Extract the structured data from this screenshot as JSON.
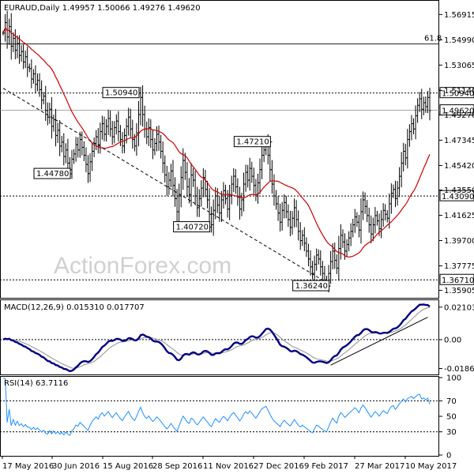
{
  "chart_data": {
    "type": "candlestick",
    "watermark": "ActionForex.com",
    "date_labels": [
      "17 May 2016",
      "30 Jun 2016",
      "15 Aug 2016",
      "28 Sep 2016",
      "11 Nov 2016",
      "27 Dec 2016",
      "9 Feb 2017",
      "27 Mar 2017",
      "10 May 2017"
    ],
    "price_panel": {
      "header": "EURAUD,Daily  1.49957 1.50066 1.49276 1.49620",
      "ylim": [
        1.354,
        1.579
      ],
      "y_ticks": [
        "1.56915",
        "1.54990",
        "1.53065",
        "1.51140",
        "1.49270",
        "1.47345",
        "1.45420",
        "1.43550",
        "1.41625",
        "1.39700",
        "1.37775",
        "1.35905"
      ],
      "fib_label": "61.8",
      "fib_level": 1.5467,
      "hlines": [
        {
          "value": 1.5094,
          "label": "1.50940",
          "style": "dotted"
        },
        {
          "value": 1.4309,
          "label": "1.43090",
          "style": "dotted"
        },
        {
          "value": 1.3671,
          "label": "1.36710",
          "style": "dotted"
        }
      ],
      "current_price": {
        "value": 1.4962,
        "label": "1.49620"
      },
      "annotations": [
        {
          "label": "1.50940",
          "date_index": 68,
          "value": 1.5094
        },
        {
          "label": "1.44780",
          "date_index": 34,
          "value": 1.4478
        },
        {
          "label": "1.40720",
          "date_index": 103,
          "value": 1.4072
        },
        {
          "label": "1.47210",
          "date_index": 133,
          "value": 1.4721
        },
        {
          "label": "1.36240",
          "date_index": 162,
          "value": 1.3624
        }
      ],
      "trendline": {
        "from": [
          0,
          1.513
        ],
        "to": [
          160,
          1.365
        ]
      },
      "moving_average_color": "#cc0000",
      "closes": [
        1.555,
        1.563,
        1.552,
        1.56,
        1.545,
        1.551,
        1.542,
        1.547,
        1.538,
        1.541,
        1.533,
        1.537,
        1.529,
        1.528,
        1.52,
        1.524,
        1.516,
        1.519,
        1.512,
        1.504,
        1.507,
        1.496,
        1.491,
        1.497,
        1.484,
        1.489,
        1.477,
        1.481,
        1.469,
        1.472,
        1.461,
        1.466,
        1.456,
        1.451,
        1.459,
        1.463,
        1.47,
        1.466,
        1.474,
        1.468,
        1.462,
        1.455,
        1.448,
        1.457,
        1.465,
        1.471,
        1.476,
        1.47,
        1.48,
        1.486,
        1.478,
        1.484,
        1.49,
        1.482,
        1.476,
        1.483,
        1.488,
        1.48,
        1.474,
        1.469,
        1.477,
        1.484,
        1.491,
        1.482,
        1.474,
        1.469,
        1.479,
        1.493,
        1.506,
        1.493,
        1.482,
        1.476,
        1.483,
        1.474,
        1.466,
        1.471,
        1.478,
        1.472,
        1.465,
        1.456,
        1.447,
        1.438,
        1.443,
        1.45,
        1.439,
        1.429,
        1.419,
        1.431,
        1.445,
        1.458,
        1.449,
        1.438,
        1.432,
        1.447,
        1.443,
        1.431,
        1.422,
        1.429,
        1.437,
        1.445,
        1.436,
        1.428,
        1.417,
        1.409,
        1.42,
        1.431,
        1.424,
        1.418,
        1.428,
        1.435,
        1.429,
        1.421,
        1.431,
        1.44,
        1.446,
        1.438,
        1.43,
        1.421,
        1.428,
        1.44,
        1.449,
        1.443,
        1.452,
        1.446,
        1.439,
        1.432,
        1.441,
        1.451,
        1.462,
        1.466,
        1.471,
        1.462,
        1.451,
        1.44,
        1.431,
        1.425,
        1.418,
        1.411,
        1.42,
        1.426,
        1.419,
        1.413,
        1.407,
        1.414,
        1.422,
        1.413,
        1.404,
        1.397,
        1.401,
        1.395,
        1.389,
        1.383,
        1.377,
        1.372,
        1.379,
        1.386,
        1.383,
        1.377,
        1.372,
        1.367,
        1.364,
        1.372,
        1.381,
        1.389,
        1.382,
        1.376,
        1.391,
        1.401,
        1.396,
        1.389,
        1.394,
        1.399,
        1.404,
        1.409,
        1.415,
        1.411,
        1.405,
        1.419,
        1.428,
        1.423,
        1.416,
        1.409,
        1.402,
        1.409,
        1.416,
        1.412,
        1.406,
        1.413,
        1.42,
        1.417,
        1.414,
        1.425,
        1.433,
        1.436,
        1.429,
        1.437,
        1.446,
        1.456,
        1.465,
        1.46,
        1.474,
        1.48,
        1.486,
        1.482,
        1.492,
        1.5,
        1.505,
        1.497,
        1.502,
        1.499,
        1.506,
        1.496
      ]
    },
    "macd_panel": {
      "header": "MACD(12,26,9) 0.015310 0.017707",
      "ylim": [
        -0.022,
        0.025
      ],
      "y_ticks": [
        "0.021032",
        "0.00",
        "-0.018699"
      ],
      "colors": {
        "macd": "#000080",
        "signal": "#909090",
        "trendline": "#000000"
      }
    },
    "rsi_panel": {
      "header": "RSI(14) 63.7116",
      "ylim": [
        0,
        100
      ],
      "y_ticks": [
        "100",
        "70",
        "50",
        "30",
        "0"
      ],
      "colors": {
        "line": "#1e90ff"
      }
    }
  }
}
